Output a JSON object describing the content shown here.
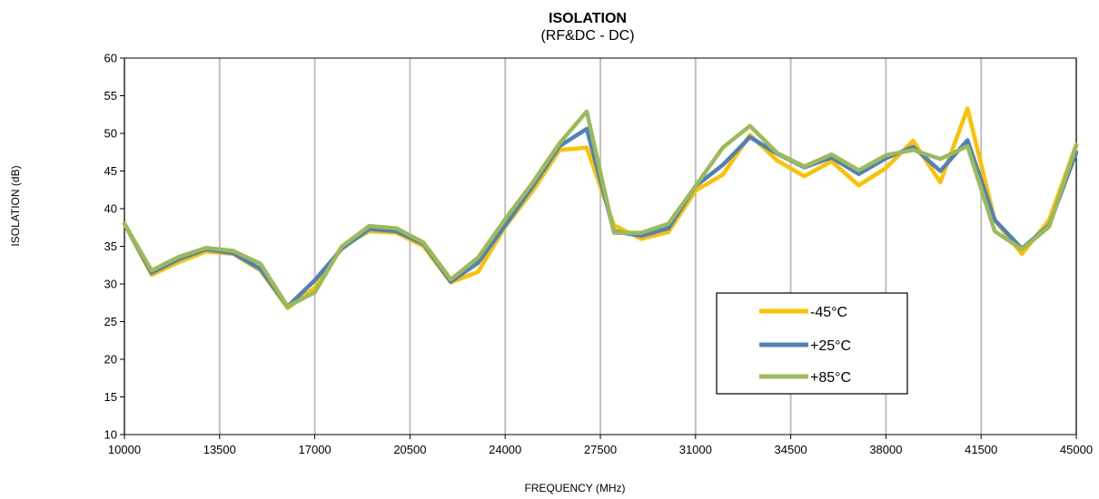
{
  "chart_data": {
    "type": "line",
    "title": "ISOLATION",
    "subtitle": "(RF&DC - DC)",
    "xlabel": "FREQUENCY (MHz)",
    "ylabel": "ISOLATION (dB)",
    "xlim": [
      10000,
      45000
    ],
    "ylim": [
      10,
      60
    ],
    "x_ticks": [
      10000,
      13500,
      17000,
      20500,
      24000,
      27500,
      31000,
      34500,
      38000,
      41500,
      45000
    ],
    "y_ticks": [
      10,
      15,
      20,
      25,
      30,
      35,
      40,
      45,
      50,
      55,
      60
    ],
    "grid": "vertical",
    "legend_placement": "center-right",
    "x": [
      10000,
      11000,
      12000,
      13000,
      14000,
      15000,
      16000,
      17000,
      18000,
      19000,
      20000,
      21000,
      22000,
      23000,
      24000,
      25000,
      26000,
      27000,
      28000,
      29000,
      30000,
      31000,
      32000,
      33000,
      34000,
      35000,
      36000,
      37000,
      38000,
      39000,
      40000,
      41000,
      42000,
      43000,
      44000,
      45000
    ],
    "series": [
      {
        "name": "-45°C",
        "color": "#FFC000",
        "values": [
          38.0,
          31.2,
          32.9,
          34.3,
          34.0,
          31.8,
          26.8,
          29.5,
          35.0,
          37.0,
          36.8,
          35.0,
          30.2,
          31.6,
          37.6,
          42.3,
          47.8,
          48.1,
          37.8,
          36.0,
          36.9,
          42.4,
          44.5,
          49.8,
          46.4,
          44.3,
          46.3,
          43.1,
          45.4,
          49.0,
          43.5,
          53.3,
          38.5,
          34.0,
          38.5,
          48.5
        ]
      },
      {
        "name": "+25°C",
        "color": "#4F81BD",
        "values": [
          38.0,
          31.5,
          33.3,
          34.6,
          34.1,
          32.0,
          27.0,
          30.5,
          34.7,
          37.3,
          37.0,
          35.3,
          30.3,
          32.8,
          37.8,
          42.9,
          48.3,
          50.6,
          37.0,
          36.4,
          37.4,
          43.0,
          45.8,
          49.5,
          47.3,
          45.5,
          46.8,
          44.6,
          46.7,
          48.2,
          45.0,
          49.1,
          38.5,
          34.7,
          37.8,
          47.5
        ]
      },
      {
        "name": "+85°C",
        "color": "#9BBB59",
        "values": [
          38.0,
          31.8,
          33.6,
          34.8,
          34.4,
          32.7,
          27.0,
          28.9,
          35.0,
          37.7,
          37.4,
          35.5,
          30.6,
          33.5,
          38.6,
          43.4,
          48.7,
          52.9,
          36.8,
          36.8,
          38.0,
          43.0,
          48.1,
          51.0,
          47.4,
          45.6,
          47.2,
          45.1,
          47.1,
          47.8,
          46.6,
          48.3,
          37.0,
          34.6,
          37.6,
          48.4
        ]
      }
    ]
  }
}
